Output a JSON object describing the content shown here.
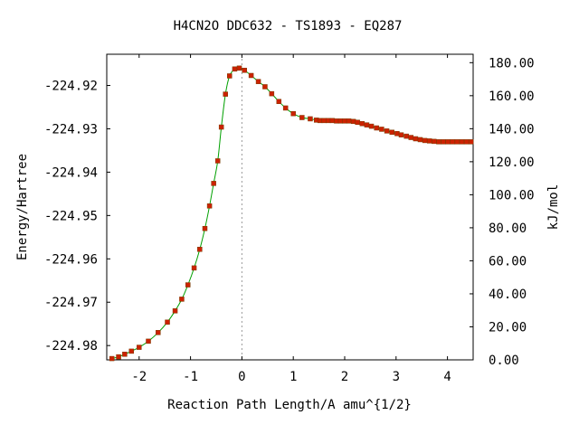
{
  "chart_data": {
    "type": "line",
    "title": "H4CN2O   DDC632 - TS1893 - EQ287",
    "xlabel": "Reaction Path Length/A amu^{1/2}",
    "ylabel": "Energy/Hartree",
    "y2label": "kJ/mol",
    "xlim": [
      -2.63,
      4.5
    ],
    "ylim": [
      -224.9833,
      -224.9128
    ],
    "y2lim": [
      0,
      185.1
    ],
    "x_ticks": [
      "-2",
      "-1",
      "0",
      "1",
      "2",
      "3",
      "4"
    ],
    "y_ticks": [
      "-224.92",
      "-224.93",
      "-224.94",
      "-224.95",
      "-224.96",
      "-224.97",
      "-224.98"
    ],
    "y2_ticks": [
      "0.00",
      "20.00",
      "40.00",
      "60.00",
      "80.00",
      "100.00",
      "120.00",
      "140.00",
      "160.00",
      "180.00"
    ],
    "ts_marker_x": 0,
    "colors": {
      "curve": "#00a000",
      "points": "#cc2200",
      "ts_line": "#999999"
    },
    "series": [
      {
        "values_x": [
          -2.53,
          -2.4,
          -2.28,
          -2.15,
          -2.0,
          -1.82,
          -1.63,
          -1.45,
          -1.3,
          -1.17,
          -1.05,
          -0.93,
          -0.82,
          -0.72,
          -0.63,
          -0.55,
          -0.47,
          -0.4,
          -0.32,
          -0.24,
          -0.14,
          -0.05,
          0.05,
          0.18,
          0.32,
          0.45,
          0.58,
          0.72,
          0.85,
          1.0,
          1.17,
          1.33,
          1.45,
          1.52,
          1.6,
          1.68,
          1.76,
          1.84,
          1.92,
          2.0,
          2.08,
          2.17,
          2.25,
          2.34,
          2.43,
          2.52,
          2.62,
          2.72,
          2.82,
          2.92,
          3.02,
          3.1,
          3.2,
          3.29,
          3.38,
          3.47,
          3.56,
          3.65,
          3.74,
          3.83,
          3.92,
          4.01,
          4.1,
          4.19,
          4.28,
          4.37,
          4.46
        ],
        "values_y": [
          -224.983,
          -224.9826,
          -224.982,
          -224.9813,
          -224.9804,
          -224.979,
          -224.977,
          -224.9746,
          -224.972,
          -224.9693,
          -224.966,
          -224.9621,
          -224.9578,
          -224.953,
          -224.9478,
          -224.9426,
          -224.9374,
          -224.9296,
          -224.922,
          -224.9178,
          -224.9162,
          -224.916,
          -224.9165,
          -224.9177,
          -224.9191,
          -224.9203,
          -224.9219,
          -224.9237,
          -224.9252,
          -224.9265,
          -224.9274,
          -224.9277,
          -224.928,
          -224.9281,
          -224.9281,
          -224.9281,
          -224.9281,
          -224.9282,
          -224.9282,
          -224.9282,
          -224.9282,
          -224.9283,
          -224.9285,
          -224.9288,
          -224.9291,
          -224.9294,
          -224.9298,
          -224.9301,
          -224.9305,
          -224.9308,
          -224.9311,
          -224.9314,
          -224.9317,
          -224.932,
          -224.9323,
          -224.9325,
          -224.9327,
          -224.9328,
          -224.9329,
          -224.933,
          -224.933,
          -224.933,
          -224.933,
          -224.933,
          -224.933,
          -224.933,
          -224.933
        ]
      }
    ]
  }
}
